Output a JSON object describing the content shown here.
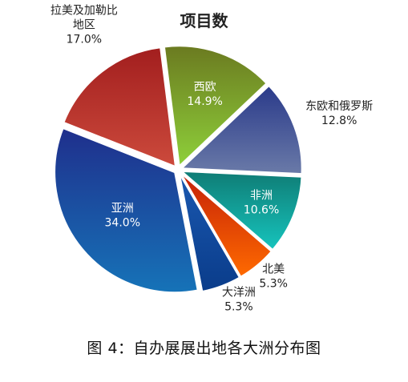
{
  "chart_data": {
    "type": "pie",
    "title": "项目数",
    "caption": "图 4：自办展展出地各大洲分布图",
    "series": [
      {
        "name": "项目数",
        "values": [
          {
            "label": [
              "东欧和俄罗斯"
            ],
            "value": 12.8,
            "value_text": "12.8%",
            "color_top": "#2a3a8a",
            "color_bottom": "#6a7aa8",
            "label_color": "#222222"
          },
          {
            "label": [
              "非洲"
            ],
            "value": 10.6,
            "value_text": "10.6%",
            "color_top": "#0f7c75",
            "color_bottom": "#16c4bd",
            "label_color": "#ffffff"
          },
          {
            "label": [
              "北美"
            ],
            "value": 5.3,
            "value_text": "5.3%",
            "color_top": "#c42008",
            "color_bottom": "#ff6a00",
            "label_color": "#222222"
          },
          {
            "label": [
              "大洋洲"
            ],
            "value": 5.3,
            "value_text": "5.3%",
            "color_top": "#1a58b0",
            "color_bottom": "#0a3c8a",
            "label_color": "#222222"
          },
          {
            "label": [
              "亚洲"
            ],
            "value": 34.0,
            "value_text": "34.0%",
            "color_top": "#1f2f8c",
            "color_bottom": "#1673b8",
            "label_color": "#ffffff"
          },
          {
            "label": [
              "拉美及加勒比",
              "地区"
            ],
            "value": 17.0,
            "value_text": "17.0%",
            "color_top": "#a21e1e",
            "color_bottom": "#cc4a3c",
            "label_color": "#222222"
          },
          {
            "label": [
              "西欧"
            ],
            "value": 14.9,
            "value_text": "14.9%",
            "color_top": "#6b7a20",
            "color_bottom": "#8ed03a",
            "label_color": "#ffffff"
          }
        ]
      }
    ],
    "legend": "none"
  }
}
